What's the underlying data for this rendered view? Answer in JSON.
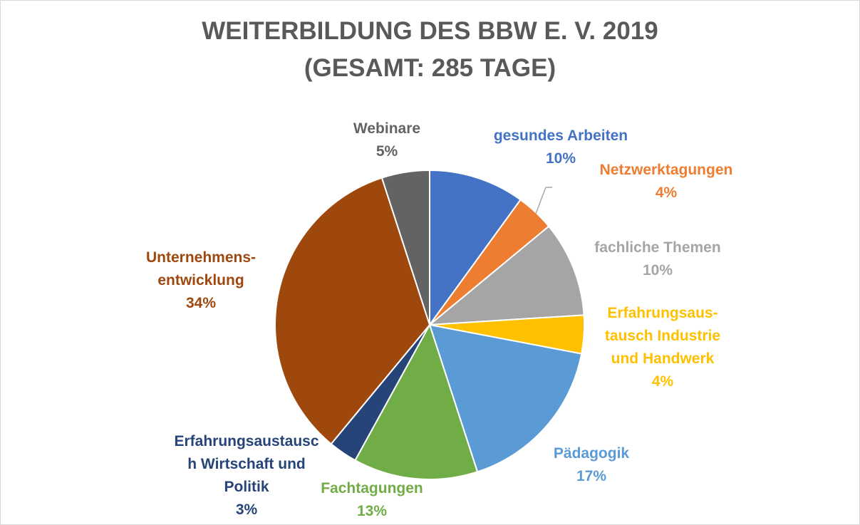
{
  "chart_data": {
    "type": "pie",
    "title": [
      "WEITERBILDUNG DES BBW E. V. 2019",
      "(GESAMT: 285 TAGE)"
    ],
    "slices": [
      {
        "label": [
          "gesundes Arbeiten"
        ],
        "value": 10,
        "value_label": "10%",
        "color": "#4472C4"
      },
      {
        "label": [
          "Netzwerktagungen"
        ],
        "value": 4,
        "value_label": "4%",
        "color": "#ED7D31"
      },
      {
        "label": [
          "fachliche Themen"
        ],
        "value": 10,
        "value_label": "10%",
        "color": "#A5A5A5"
      },
      {
        "label": [
          "Erfahrungsaus-",
          "tausch Industrie",
          "und Handwerk"
        ],
        "value": 4,
        "value_label": "4%",
        "color": "#FFC000"
      },
      {
        "label": [
          "Pädagogik"
        ],
        "value": 17,
        "value_label": "17%",
        "color": "#5B9BD5"
      },
      {
        "label": [
          "Fachtagungen"
        ],
        "value": 13,
        "value_label": "13%",
        "color": "#70AD47"
      },
      {
        "label": [
          "Erfahrungsaustausc",
          "h Wirtschaft und",
          "Politik"
        ],
        "value": 3,
        "value_label": "3%",
        "color": "#264478"
      },
      {
        "label": [
          "Unternehmens-",
          "entwicklung"
        ],
        "value": 34,
        "value_label": "34%",
        "color": "#9E480E"
      },
      {
        "label": [
          "Webinare"
        ],
        "value": 5,
        "value_label": "5%",
        "color": "#636363"
      }
    ]
  }
}
